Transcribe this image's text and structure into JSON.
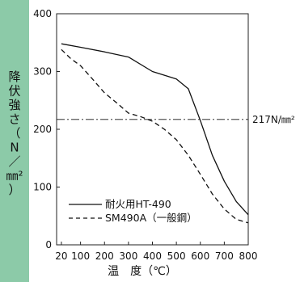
{
  "chart_data": {
    "type": "line",
    "ylabel_chars": [
      "降",
      "伏",
      "強",
      "さ",
      "（",
      "N",
      "／",
      "㎜²",
      "）"
    ],
    "xlabel": "温　度（℃）",
    "xlim": [
      0,
      800
    ],
    "ylim": [
      0,
      400
    ],
    "x_ticks": [
      20,
      100,
      200,
      300,
      400,
      500,
      600,
      700,
      800
    ],
    "y_ticks": [
      0,
      100,
      200,
      300,
      400
    ],
    "reference_line": {
      "y": 217,
      "label": "217N/㎜²"
    },
    "series": [
      {
        "name": "耐火用HT-490",
        "style": "solid",
        "points": [
          [
            20,
            348
          ],
          [
            100,
            342
          ],
          [
            200,
            334
          ],
          [
            300,
            325
          ],
          [
            400,
            300
          ],
          [
            500,
            287
          ],
          [
            550,
            270
          ],
          [
            600,
            215
          ],
          [
            650,
            155
          ],
          [
            700,
            110
          ],
          [
            750,
            75
          ],
          [
            800,
            52
          ]
        ]
      },
      {
        "name": "SM490A（一般鋼）",
        "style": "dashed",
        "points": [
          [
            20,
            338
          ],
          [
            60,
            322
          ],
          [
            100,
            310
          ],
          [
            150,
            287
          ],
          [
            200,
            263
          ],
          [
            250,
            246
          ],
          [
            300,
            228
          ],
          [
            350,
            222
          ],
          [
            400,
            214
          ],
          [
            450,
            200
          ],
          [
            500,
            182
          ],
          [
            550,
            155
          ],
          [
            600,
            122
          ],
          [
            650,
            88
          ],
          [
            700,
            62
          ],
          [
            750,
            44
          ],
          [
            800,
            38
          ]
        ]
      }
    ]
  }
}
